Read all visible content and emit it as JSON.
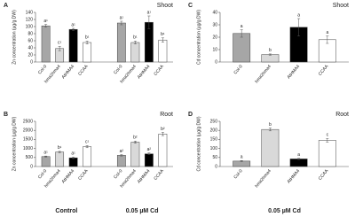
{
  "chart_data": [
    {
      "type": "bar",
      "panel": "A",
      "title": "Shoot",
      "y_label": "Zn concentration (µg/g DW)",
      "categories": [
        "Col-0",
        "hma2hma4",
        "AtHMA4",
        "CCAA",
        "Col-0",
        "hma2hma4",
        "AtHMA4",
        "CCAA"
      ],
      "values": [
        102,
        38,
        92,
        55,
        110,
        55,
        112,
        62
      ],
      "errors": [
        4,
        6,
        3,
        4,
        5,
        4,
        18,
        6
      ],
      "letters": [
        "a¹",
        "c¹",
        "a¹",
        "b¹",
        "a¹",
        "b¹",
        "a¹",
        "b¹"
      ],
      "colors": [
        "#a6a6a6",
        "#d9d9d9",
        "#000000",
        "#ffffff",
        "#a6a6a6",
        "#d9d9d9",
        "#000000",
        "#ffffff"
      ],
      "ylim": [
        0,
        140
      ],
      "yticks": [
        0,
        20,
        40,
        60,
        80,
        100,
        120,
        140
      ]
    },
    {
      "type": "bar",
      "panel": "B",
      "title": "Root",
      "y_label": "Zn concentration (µg/g DW)",
      "categories": [
        "Col-0",
        "hma2hma4",
        "AtHMA4",
        "CCAA",
        "Col-0",
        "hma2hma4",
        "AtHMA4",
        "CCAA"
      ],
      "values": [
        550,
        800,
        480,
        1100,
        620,
        1350,
        700,
        1800
      ],
      "errors": [
        30,
        40,
        40,
        60,
        40,
        60,
        50,
        90
      ],
      "letters": [
        "a¹",
        "b¹",
        "a¹",
        "c¹",
        "a²",
        "b²",
        "a²",
        "b²"
      ],
      "colors": [
        "#a6a6a6",
        "#d9d9d9",
        "#000000",
        "#ffffff",
        "#a6a6a6",
        "#d9d9d9",
        "#000000",
        "#ffffff"
      ],
      "group_labels": [
        "Control",
        "0.05 µM Cd"
      ],
      "ylim": [
        0,
        2500
      ],
      "yticks": [
        0,
        500,
        1000,
        1500,
        2000,
        2500
      ]
    },
    {
      "type": "bar",
      "panel": "C",
      "title": "Shoot",
      "y_label": "Cd concentration (µg/g DW)",
      "categories": [
        "Col-0",
        "hma2hma4",
        "AtHMA4",
        "CCAA"
      ],
      "values": [
        23,
        6,
        28,
        18
      ],
      "errors": [
        3,
        0.5,
        7,
        3
      ],
      "letters": [
        "a",
        "b",
        "a",
        "a"
      ],
      "colors": [
        "#a6a6a6",
        "#d9d9d9",
        "#000000",
        "#ffffff"
      ],
      "ylim": [
        0,
        40
      ],
      "yticks": [
        0,
        10,
        20,
        30,
        40
      ]
    },
    {
      "type": "bar",
      "panel": "D",
      "title": "Root",
      "y_label": "Cd concentration (µg/g DW)",
      "categories": [
        "Col-0",
        "hma2hma4",
        "AtHMA4",
        "CCAA"
      ],
      "values": [
        30,
        205,
        42,
        145
      ],
      "errors": [
        3,
        8,
        3,
        10
      ],
      "letters": [
        "a",
        "b",
        "a",
        "c"
      ],
      "colors": [
        "#a6a6a6",
        "#d9d9d9",
        "#000000",
        "#ffffff"
      ],
      "group_labels": [
        "0.05 µM Cd"
      ],
      "ylim": [
        0,
        250
      ],
      "yticks": [
        0,
        50,
        100,
        150,
        200,
        250
      ]
    }
  ]
}
